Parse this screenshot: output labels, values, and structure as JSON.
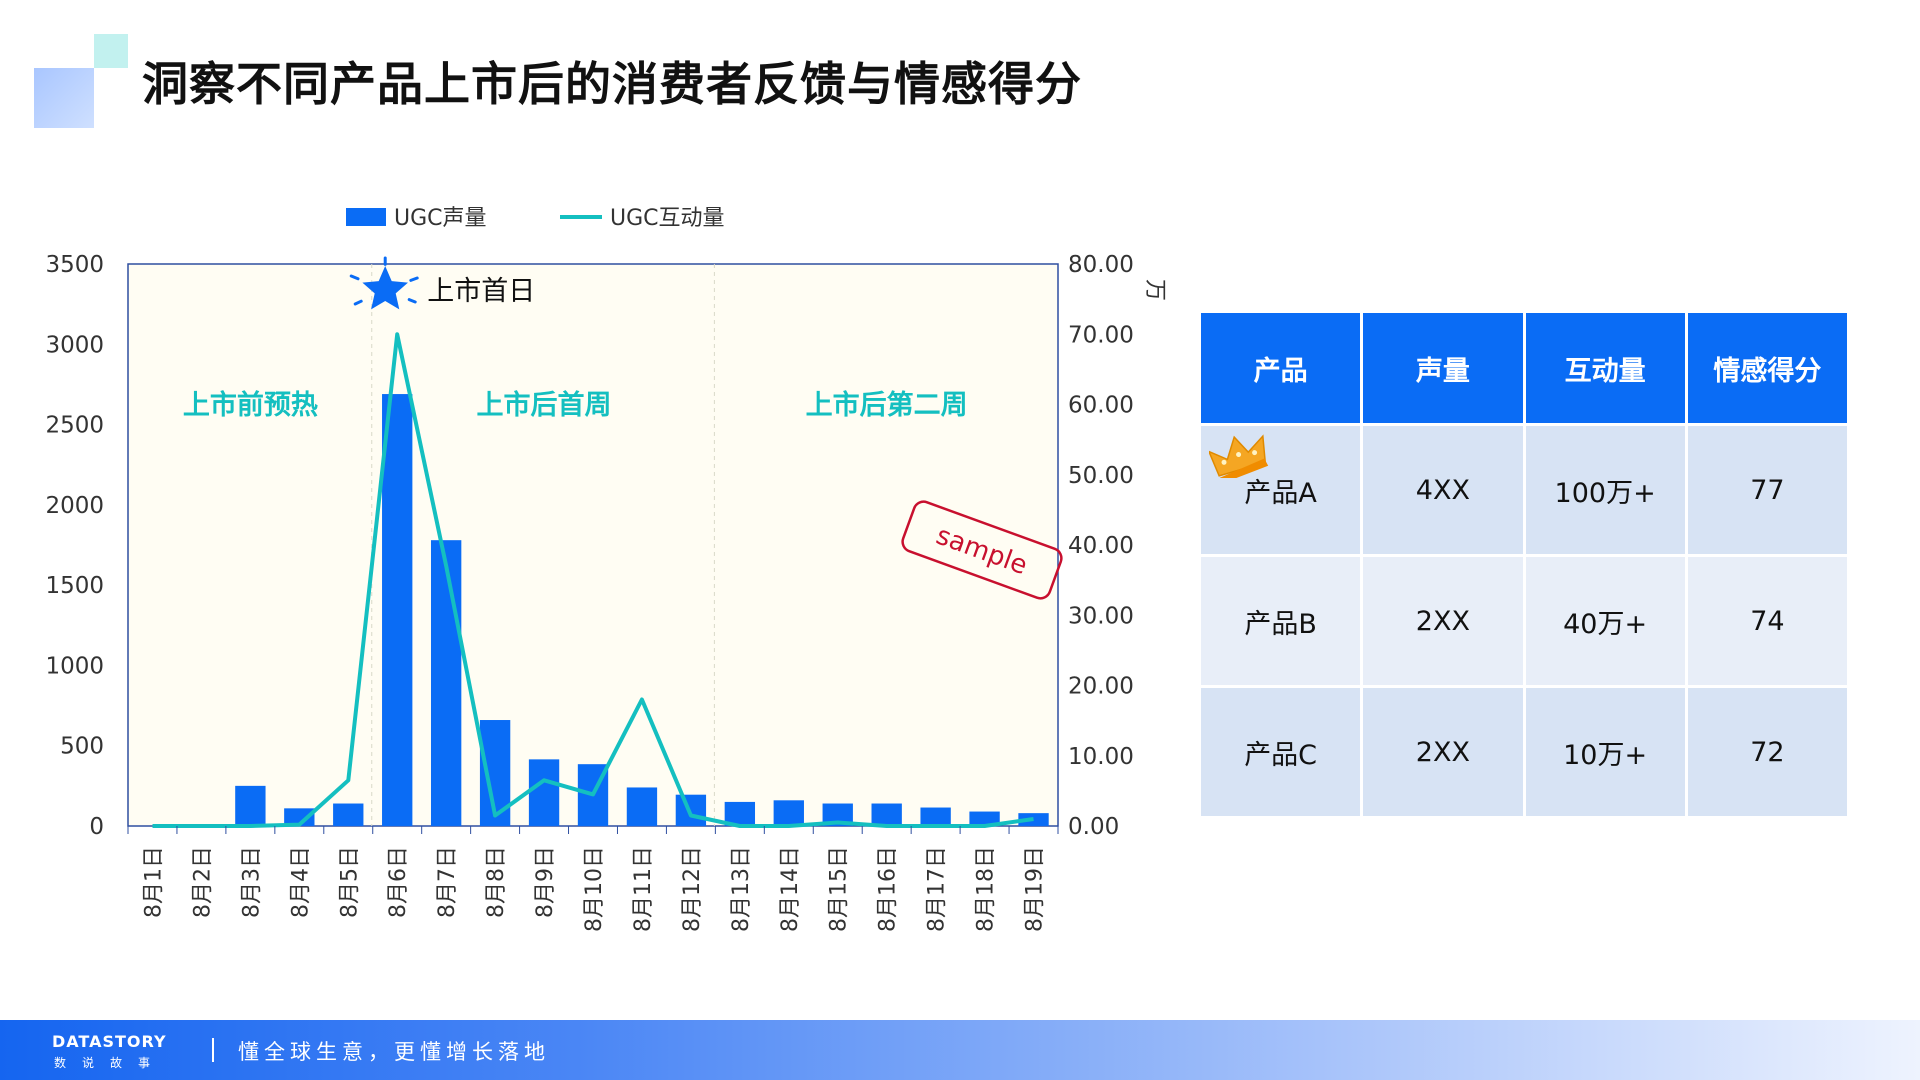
{
  "page": {
    "title": "洞察不同产品上市后的消费者反馈与情感得分"
  },
  "chart_data": {
    "type": "bar",
    "categories": [
      "8月1日",
      "8月2日",
      "8月3日",
      "8月4日",
      "8月5日",
      "8月6日",
      "8月7日",
      "8月8日",
      "8月9日",
      "8月10日",
      "8月11日",
      "8月12日",
      "8月13日",
      "8月14日",
      "8月15日",
      "8月16日",
      "8月17日",
      "8月18日",
      "8月19日"
    ],
    "series": [
      {
        "name": "UGC声量",
        "type": "bar",
        "axis": "left",
        "color": "#0a6cf5",
        "values": [
          0,
          0,
          250,
          110,
          140,
          2690,
          1780,
          660,
          415,
          385,
          240,
          195,
          150,
          160,
          140,
          140,
          115,
          90,
          80
        ]
      },
      {
        "name": "UGC互动量",
        "type": "line",
        "axis": "right",
        "color": "#14bfc0",
        "values": [
          0,
          0,
          0,
          0.2,
          6.5,
          70,
          37,
          1.5,
          6.5,
          4.5,
          18,
          1.5,
          0,
          0,
          0.5,
          0,
          0,
          0,
          1
        ]
      }
    ],
    "ylim": [
      0,
      3500
    ],
    "yticks": [
      "0",
      "500",
      "1000",
      "1500",
      "2000",
      "2500",
      "3000",
      "3500"
    ],
    "y2lim": [
      0,
      80
    ],
    "y2ticks": [
      "0.00",
      "10.00",
      "20.00",
      "30.00",
      "40.00",
      "50.00",
      "60.00",
      "70.00",
      "80.00"
    ],
    "y2unit": "万",
    "legend_position": "top",
    "grid": false,
    "background": "#fffdf3",
    "phases": [
      {
        "label": "上市前预热",
        "from": 0,
        "to": 4
      },
      {
        "label": "上市后首周",
        "from": 5,
        "to": 11
      },
      {
        "label": "上市后第二周",
        "from": 12,
        "to": 18
      }
    ],
    "phase_color": "#14bfc0",
    "launch_label": "上市首日",
    "launch_index": 5,
    "stamp": "sample"
  },
  "table": {
    "headers": [
      "产品",
      "声量",
      "互动量",
      "情感得分"
    ],
    "rows": [
      [
        "产品A",
        "4XX",
        "100万+",
        "77"
      ],
      [
        "产品B",
        "2XX",
        "40万+",
        "74"
      ],
      [
        "产品C",
        "2XX",
        "10万+",
        "72"
      ]
    ],
    "crown_row": 0,
    "header_color": "#0a6cf5"
  },
  "footer": {
    "brand": "DATASTORY",
    "brand_sub": "数说故事",
    "slogan": "懂全球生意，更懂增长落地"
  }
}
